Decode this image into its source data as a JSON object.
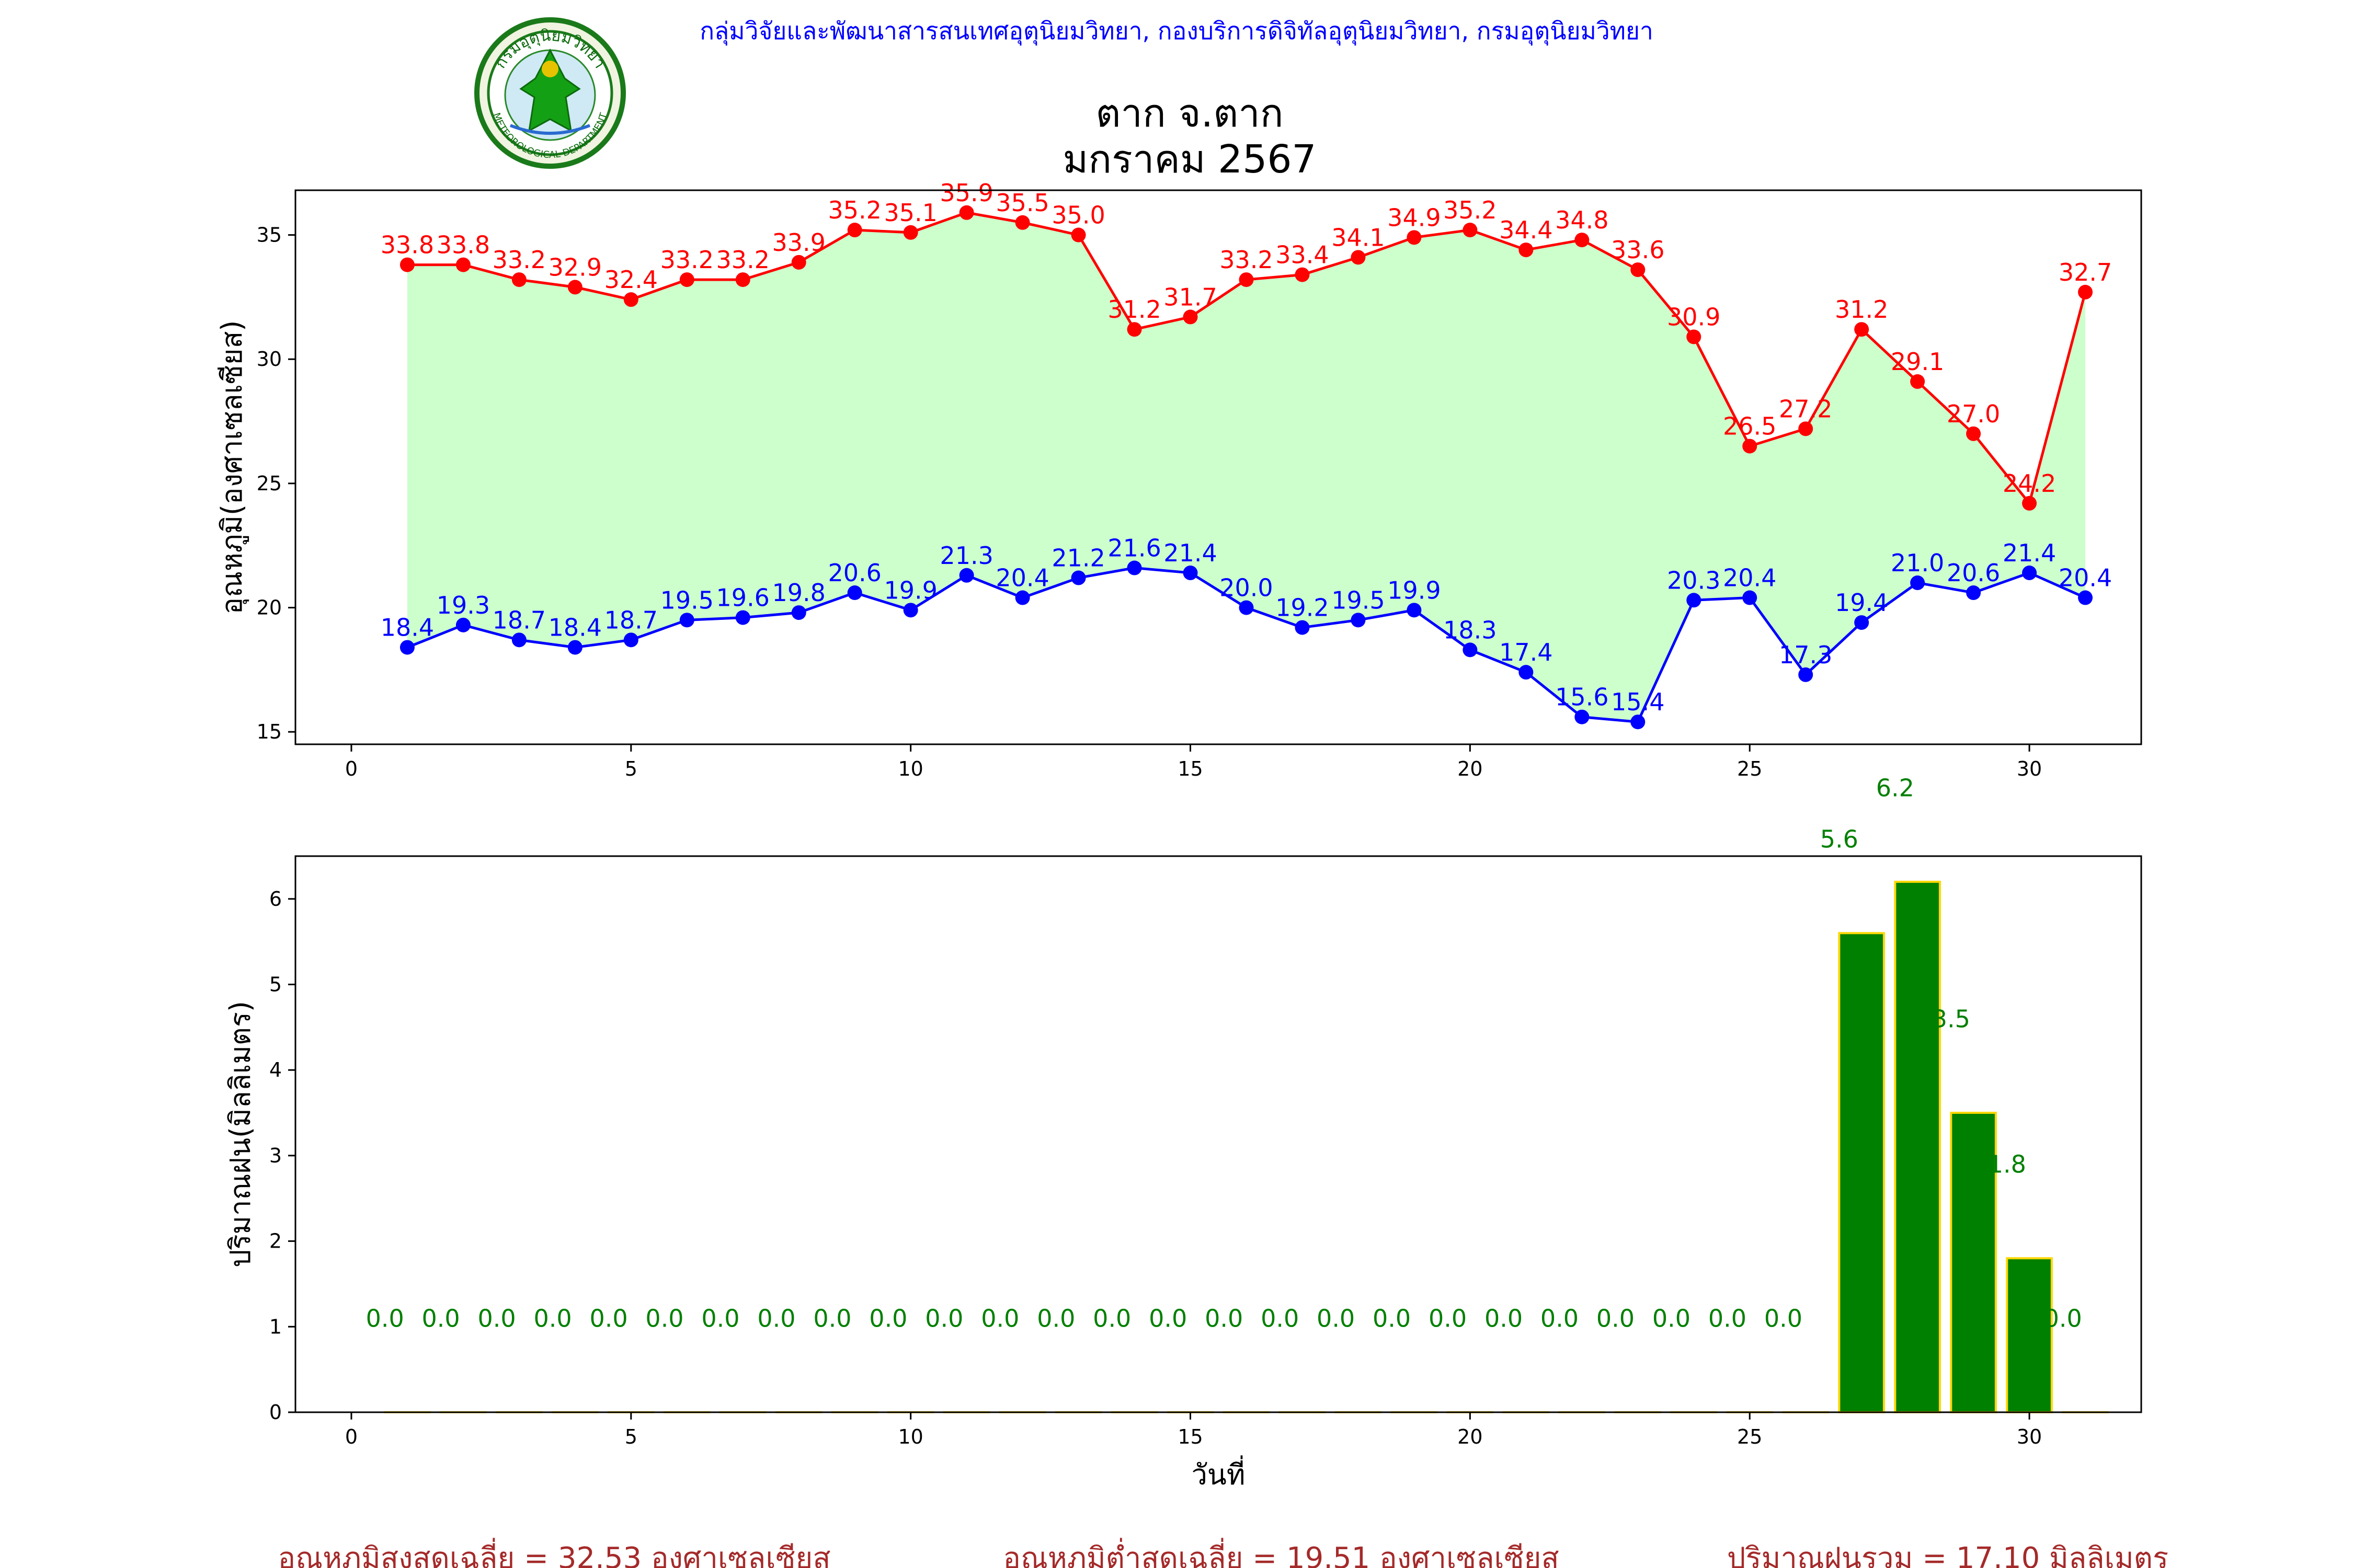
{
  "header": {
    "organization": "กลุ่มวิจัยและพัฒนาสารสนเทศอุตุนิยมวิทยา, กองบริการดิจิทัลอุตุนิยมวิทยา, กรมอุตุนิยมวิทยา",
    "title_line1": "ตาก จ.ตาก",
    "title_line2": "มกราคม 2567",
    "logo_top_text": "กรมอุตุนิยมวิทยา",
    "logo_bottom_text": "METEOROLOGICAL DEPARTMENT"
  },
  "chart_data": [
    {
      "type": "line",
      "ylabel": "อุณหภูมิ(องศาเซลเซียส)",
      "xlabel": "",
      "xlim": [
        -1,
        32
      ],
      "ylim": [
        14.5,
        36.8
      ],
      "xticks": [
        0,
        5,
        10,
        15,
        20,
        25,
        30
      ],
      "yticks": [
        15,
        20,
        25,
        30,
        35
      ],
      "fill_between": "#ccffcc",
      "x": [
        1,
        2,
        3,
        4,
        5,
        6,
        7,
        8,
        9,
        10,
        11,
        12,
        13,
        14,
        15,
        16,
        17,
        18,
        19,
        20,
        21,
        22,
        23,
        24,
        25,
        26,
        27,
        28,
        29,
        30,
        31
      ],
      "series": [
        {
          "color": "#ff0000",
          "values": [
            33.8,
            33.8,
            33.2,
            32.9,
            32.4,
            33.2,
            33.2,
            33.9,
            35.2,
            35.1,
            35.9,
            35.5,
            35.0,
            31.2,
            31.7,
            33.2,
            33.4,
            34.1,
            34.9,
            35.2,
            34.4,
            34.8,
            33.6,
            30.9,
            26.5,
            27.2,
            31.2,
            29.1,
            27.0,
            24.2,
            32.7
          ]
        },
        {
          "color": "#0000ff",
          "values": [
            18.4,
            19.3,
            18.7,
            18.4,
            18.7,
            19.5,
            19.6,
            19.8,
            20.6,
            19.9,
            21.3,
            20.4,
            21.2,
            21.6,
            21.4,
            20.0,
            19.2,
            19.5,
            19.9,
            18.3,
            17.4,
            15.6,
            15.4,
            20.3,
            20.4,
            17.3,
            19.4,
            21.0,
            20.6,
            21.4,
            20.4
          ]
        }
      ]
    },
    {
      "type": "bar",
      "ylabel": "ปริมาณฝน(มิลลิเมตร)",
      "xlabel": "วันที่",
      "xlim": [
        -1,
        32
      ],
      "ylim": [
        0,
        6.5
      ],
      "xticks": [
        0,
        5,
        10,
        15,
        20,
        25,
        30
      ],
      "yticks": [
        0,
        1,
        2,
        3,
        4,
        5,
        6
      ],
      "bar_color": "#008000",
      "bar_edge": "#ffd700",
      "x": [
        1,
        2,
        3,
        4,
        5,
        6,
        7,
        8,
        9,
        10,
        11,
        12,
        13,
        14,
        15,
        16,
        17,
        18,
        19,
        20,
        21,
        22,
        23,
        24,
        25,
        26,
        27,
        28,
        29,
        30,
        31
      ],
      "values": [
        0.0,
        0.0,
        0.0,
        0.0,
        0.0,
        0.0,
        0.0,
        0.0,
        0.0,
        0.0,
        0.0,
        0.0,
        0.0,
        0.0,
        0.0,
        0.0,
        0.0,
        0.0,
        0.0,
        0.0,
        0.0,
        0.0,
        0.0,
        0.0,
        0.0,
        0.0,
        5.6,
        6.2,
        3.5,
        1.8,
        0.0
      ]
    }
  ],
  "summary": {
    "avg_max": "อุณหภูมิสูงสุดเฉลี่ย = 32.53 องศาเซลเซียส",
    "avg_min": "อุณหภูมิต่ำสุดเฉลี่ย = 19.51 องศาเซลเซียส",
    "total_rain": "ปริมาณฝนรวม = 17.10 มิลลิเมตร"
  }
}
